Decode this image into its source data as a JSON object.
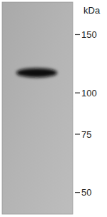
{
  "chart_data": {
    "type": "western_blot",
    "y_label": "kDa",
    "categories": [
      null
    ],
    "values": [
      115
    ],
    "color": "#111111",
    "log": "y",
    "ylim": [
      188,
      43
    ],
    "yticks": [
      150,
      100,
      75,
      50
    ],
    "tick_labels": "y"
  }
}
